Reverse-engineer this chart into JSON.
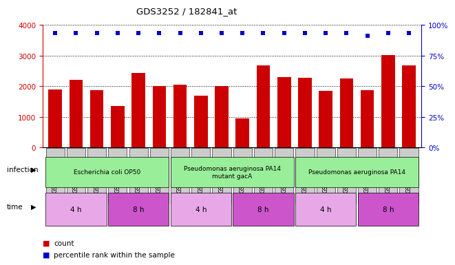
{
  "title": "GDS3252 / 182841_at",
  "samples": [
    "GSM135322",
    "GSM135323",
    "GSM135324",
    "GSM135325",
    "GSM135326",
    "GSM135327",
    "GSM135328",
    "GSM135329",
    "GSM135330",
    "GSM135340",
    "GSM135355",
    "GSM135365",
    "GSM135382",
    "GSM135383",
    "GSM135384",
    "GSM135385",
    "GSM135386",
    "GSM135387"
  ],
  "counts": [
    1900,
    2200,
    1880,
    1360,
    2420,
    2000,
    2050,
    1680,
    2000,
    960,
    2680,
    2300,
    2280,
    1840,
    2250,
    1870,
    3020,
    2680
  ],
  "percentile": [
    93,
    93,
    93,
    93,
    93,
    93,
    93,
    93,
    93,
    93,
    93,
    93,
    93,
    93,
    93,
    91,
    93,
    93
  ],
  "bar_color": "#cc0000",
  "dot_color": "#0000cc",
  "ylim_left": [
    0,
    4000
  ],
  "ylim_right": [
    0,
    100
  ],
  "yticks_left": [
    0,
    1000,
    2000,
    3000,
    4000
  ],
  "yticks_right": [
    0,
    25,
    50,
    75,
    100
  ],
  "grid_color": "#000000",
  "infection_groups": [
    {
      "label": "Escherichia coli OP50",
      "start": 0,
      "end": 6,
      "color": "#99ee99"
    },
    {
      "label": "Pseudomonas aeruginosa PA14\nmutant gacA",
      "start": 6,
      "end": 12,
      "color": "#99ee99"
    },
    {
      "label": "Pseudomonas aeruginosa PA14",
      "start": 12,
      "end": 18,
      "color": "#99ee99"
    }
  ],
  "time_groups": [
    {
      "label": "4 h",
      "start": 0,
      "end": 3,
      "color": "#e8a8e8"
    },
    {
      "label": "8 h",
      "start": 3,
      "end": 6,
      "color": "#cc55cc"
    },
    {
      "label": "4 h",
      "start": 6,
      "end": 9,
      "color": "#e8a8e8"
    },
    {
      "label": "8 h",
      "start": 9,
      "end": 12,
      "color": "#cc55cc"
    },
    {
      "label": "4 h",
      "start": 12,
      "end": 15,
      "color": "#e8a8e8"
    },
    {
      "label": "8 h",
      "start": 15,
      "end": 18,
      "color": "#cc55cc"
    }
  ],
  "infection_label": "infection",
  "time_label": "time",
  "legend_count_label": "count",
  "legend_percentile_label": "percentile rank within the sample",
  "bg_color": "#ffffff",
  "tick_bg_color": "#cccccc"
}
